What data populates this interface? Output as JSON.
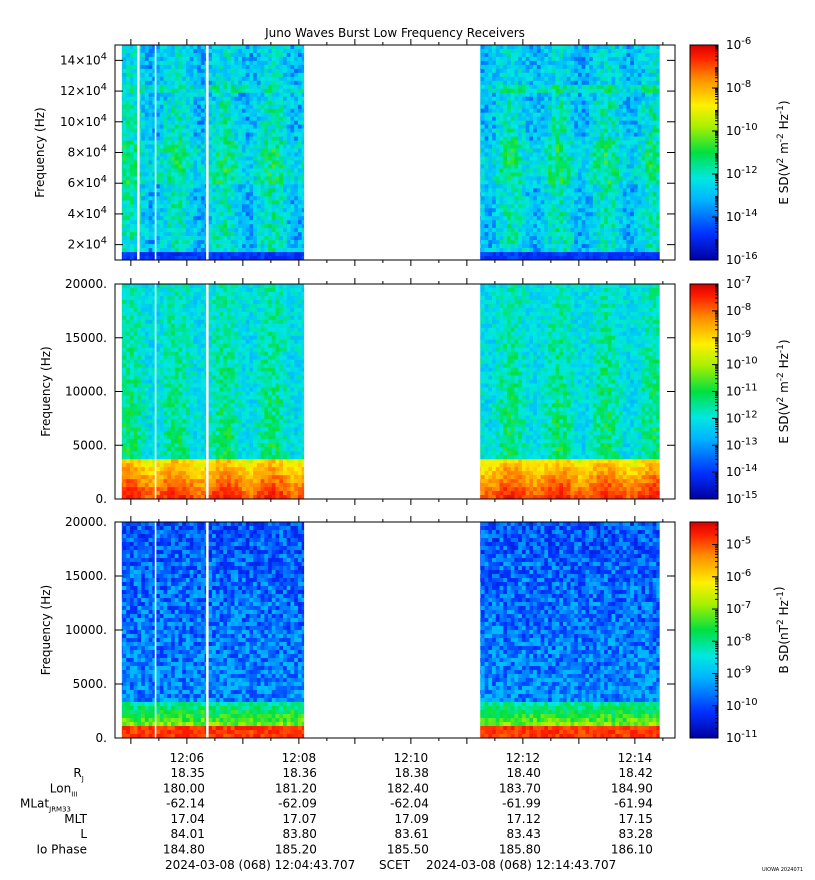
{
  "title": "Juno Waves Burst Low Frequency Receivers",
  "colors": {
    "ramp": [
      "#0000a0",
      "#0030ff",
      "#00b4ff",
      "#00e8e0",
      "#00e040",
      "#a8f000",
      "#fff000",
      "#ff9000",
      "#ff2000",
      "#d80000"
    ]
  },
  "chart_data": [
    {
      "type": "heatmap",
      "ylabel": "Frequency (Hz)",
      "ylim": [
        10000,
        150000
      ],
      "yticks": [
        {
          "v": 20000,
          "m": "2",
          "e": "4"
        },
        {
          "v": 40000,
          "m": "4",
          "e": "4"
        },
        {
          "v": 60000,
          "m": "6",
          "e": "4"
        },
        {
          "v": 80000,
          "m": "8",
          "e": "4"
        },
        {
          "v": 100000,
          "m": "10",
          "e": "4"
        },
        {
          "v": 120000,
          "m": "12",
          "e": "4"
        },
        {
          "v": 140000,
          "m": "14",
          "e": "4"
        }
      ],
      "data_intervals": [
        [
          "12:04:51",
          "12:05:07"
        ],
        [
          "12:05:10",
          "12:05:26"
        ],
        [
          "12:05:28",
          "12:06:21"
        ],
        [
          "12:06:24",
          "12:08:06"
        ],
        [
          "12:11:15",
          "12:14:27"
        ]
      ],
      "colorbar": {
        "label_pre": "E SD(V",
        "label_mid": " m",
        "label_mid2": " Hz",
        "label_post": ")",
        "log_range": [
          -16,
          -6
        ],
        "ticks": [
          {
            "e": "-6",
            "v": -6
          },
          {
            "e": "-8",
            "v": -8
          },
          {
            "e": "-10",
            "v": -10
          },
          {
            "e": "-12",
            "v": -12
          },
          {
            "e": "-14",
            "v": -14
          },
          {
            "e": "-16",
            "v": -16
          }
        ]
      },
      "description_level": {
        "background": -13,
        "low_band_peak": -15
      }
    },
    {
      "type": "heatmap",
      "ylabel": "Frequency (Hz)",
      "ylim": [
        0,
        20000
      ],
      "yticks": [
        {
          "v": 0,
          "t": "0."
        },
        {
          "v": 5000,
          "t": "5000."
        },
        {
          "v": 10000,
          "t": "10000."
        },
        {
          "v": 15000,
          "t": "15000."
        },
        {
          "v": 20000,
          "t": "20000."
        }
      ],
      "data_intervals": [
        [
          "12:04:51",
          "12:05:26"
        ],
        [
          "12:05:28",
          "12:06:21"
        ],
        [
          "12:06:24",
          "12:08:06"
        ],
        [
          "12:11:15",
          "12:14:27"
        ]
      ],
      "colorbar": {
        "label_pre": "E SD(V",
        "label_mid": " m",
        "label_mid2": " Hz",
        "label_post": ")",
        "log_range": [
          -15,
          -7
        ],
        "ticks": [
          {
            "e": "-7",
            "v": -7
          },
          {
            "e": "-8",
            "v": -8
          },
          {
            "e": "-9",
            "v": -9
          },
          {
            "e": "-10",
            "v": -10
          },
          {
            "e": "-11",
            "v": -11
          },
          {
            "e": "-12",
            "v": -12
          },
          {
            "e": "-13",
            "v": -13
          },
          {
            "e": "-14",
            "v": -14
          },
          {
            "e": "-15",
            "v": -15
          }
        ]
      },
      "intense_band_hz": [
        0,
        4000
      ]
    },
    {
      "type": "heatmap",
      "ylabel": "Frequency (Hz)",
      "ylim": [
        0,
        20000
      ],
      "yticks": [
        {
          "v": 0,
          "t": "0."
        },
        {
          "v": 5000,
          "t": "5000."
        },
        {
          "v": 10000,
          "t": "10000."
        },
        {
          "v": 15000,
          "t": "15000."
        },
        {
          "v": 20000,
          "t": "20000."
        }
      ],
      "data_intervals": [
        [
          "12:04:51",
          "12:05:26"
        ],
        [
          "12:05:28",
          "12:06:21"
        ],
        [
          "12:06:24",
          "12:08:06"
        ],
        [
          "12:11:15",
          "12:14:27"
        ]
      ],
      "colorbar": {
        "label_pre": "B SD(nT",
        "label_mid": " Hz",
        "label_mid2": "",
        "label_post": ")",
        "log_range": [
          -11,
          -4.3
        ],
        "ticks": [
          {
            "e": "-5",
            "v": -5
          },
          {
            "e": "-6",
            "v": -6
          },
          {
            "e": "-7",
            "v": -7
          },
          {
            "e": "-8",
            "v": -8
          },
          {
            "e": "-9",
            "v": -9
          },
          {
            "e": "-10",
            "v": -10
          },
          {
            "e": "-11",
            "v": -11
          }
        ]
      },
      "intense_band_hz": [
        0,
        3800
      ]
    }
  ],
  "time_axis": {
    "start": "12:04:43.707",
    "end": "12:14:43.707",
    "labels": [
      {
        "t": "12:06",
        "s": 77
      },
      {
        "t": "12:08",
        "s": 197
      },
      {
        "t": "12:10",
        "s": 317
      },
      {
        "t": "12:12",
        "s": 437
      },
      {
        "t": "12:14",
        "s": 557
      }
    ]
  },
  "ephemeris": {
    "rows": [
      {
        "label": "R",
        "sub": "J",
        "values": [
          "18.35",
          "18.36",
          "18.38",
          "18.40",
          "18.42"
        ]
      },
      {
        "label": "Lon",
        "sub": "III",
        "values": [
          "180.00",
          "181.20",
          "182.40",
          "183.70",
          "184.90"
        ]
      },
      {
        "label": "MLat",
        "sub": "JRM33",
        "values": [
          "-62.14",
          "-62.09",
          "-62.04",
          "-61.99",
          "-61.94"
        ]
      },
      {
        "label": "MLT",
        "sub": "",
        "values": [
          "17.04",
          "17.07",
          "17.09",
          "17.12",
          "17.15"
        ]
      },
      {
        "label": "L",
        "sub": "",
        "values": [
          "84.01",
          "83.80",
          "83.61",
          "83.43",
          "83.28"
        ]
      },
      {
        "label": "Io Phase",
        "sub": "",
        "values": [
          "184.80",
          "185.20",
          "185.50",
          "185.80",
          "186.10"
        ]
      }
    ]
  },
  "footer": {
    "start_label": "2024-03-08 (068) 12:04:43.707",
    "scet": "SCET",
    "end_label": "2024-03-08 (068) 12:14:43.707",
    "credit": "UIOWA 2024071"
  }
}
